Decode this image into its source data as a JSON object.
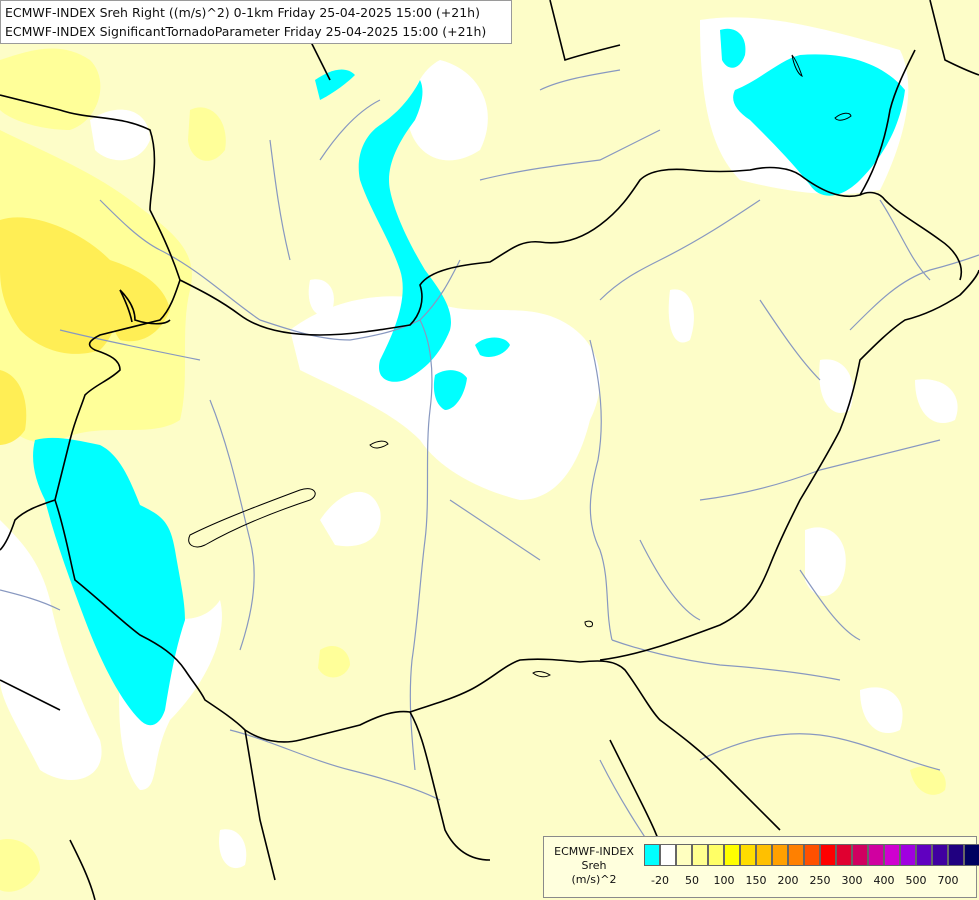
{
  "title": {
    "line1": "ECMWF-INDEX Sreh Right ((m/s)^2) 0-1km Friday 25-04-2025 15:00 (+21h)",
    "line2": "ECMWF-INDEX SignificantTornadoParameter Friday 25-04-2025 15:00 (+21h)"
  },
  "legend": {
    "title_lines": [
      "ECMWF-INDEX",
      "Sreh",
      "(m/s)^2"
    ],
    "colors": [
      "#00ffff",
      "#ffffff",
      "#ffffc0",
      "#ffff90",
      "#ffff66",
      "#ffff00",
      "#ffdd00",
      "#ffc000",
      "#ffa000",
      "#ff8000",
      "#ff5000",
      "#ff0000",
      "#e00030",
      "#d00060",
      "#d000a0",
      "#d000d0",
      "#a000e0",
      "#6000c0",
      "#4000a0",
      "#200080",
      "#000060"
    ],
    "tick_labels": [
      "-20",
      "50",
      "100",
      "150",
      "200",
      "250",
      "300",
      "400",
      "500",
      "700"
    ]
  },
  "field_colors": {
    "background": "#fdfdc8",
    "none": "#ffffff",
    "low_yellow": "#ffff99",
    "mid_yellow": "#ffee55",
    "cyan": "#00ffff",
    "border": "#000000",
    "river": "#8898c0"
  }
}
